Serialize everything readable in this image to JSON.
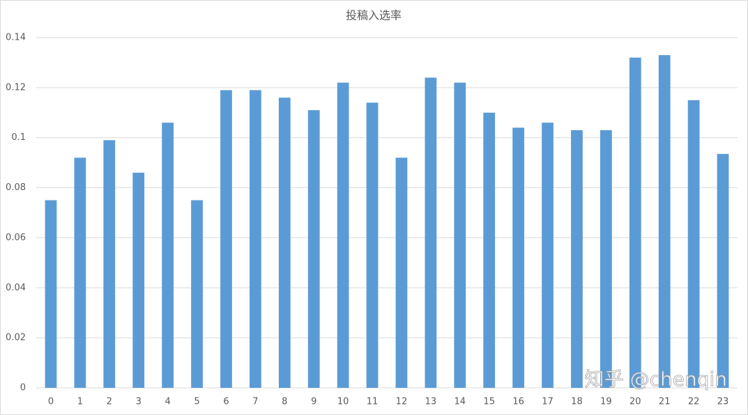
{
  "chart_data": {
    "type": "bar",
    "title": "投稿入选率",
    "categories": [
      "0",
      "1",
      "2",
      "3",
      "4",
      "5",
      "6",
      "7",
      "8",
      "9",
      "10",
      "11",
      "12",
      "13",
      "14",
      "15",
      "16",
      "17",
      "18",
      "19",
      "20",
      "21",
      "22",
      "23"
    ],
    "values": [
      0.075,
      0.092,
      0.099,
      0.086,
      0.106,
      0.075,
      0.119,
      0.119,
      0.116,
      0.111,
      0.122,
      0.114,
      0.092,
      0.124,
      0.122,
      0.11,
      0.104,
      0.106,
      0.103,
      0.103,
      0.132,
      0.133,
      0.115,
      0.0935
    ],
    "color": "#5b9bd5",
    "ylim": [
      0,
      0.14
    ],
    "yticks": [
      0,
      0.02,
      0.04,
      0.06,
      0.08,
      0.1,
      0.12,
      0.14
    ],
    "grid": true,
    "watermark": "知乎 @chenqin"
  }
}
